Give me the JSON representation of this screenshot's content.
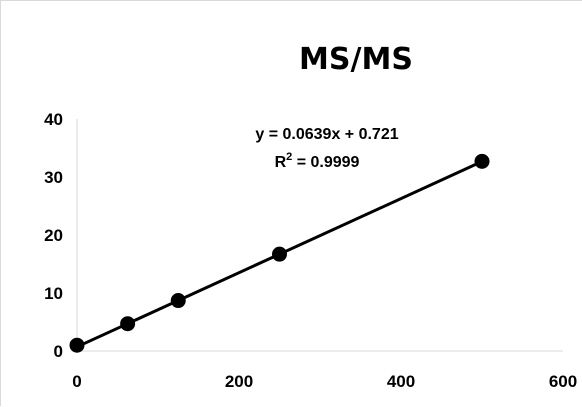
{
  "chart_data": {
    "type": "scatter",
    "title": "MS/MS",
    "xlabel": "",
    "ylabel": "",
    "x": [
      0,
      62.5,
      125,
      250,
      500
    ],
    "y": [
      1,
      4.7,
      8.7,
      16.7,
      32.7
    ],
    "xlim": [
      0,
      600
    ],
    "ylim": [
      0,
      40
    ],
    "xticks": [
      "0",
      "200",
      "400",
      "600"
    ],
    "yticks": [
      "0",
      "10",
      "20",
      "30",
      "40"
    ],
    "grid": false,
    "legend": "none",
    "trendline": {
      "equation": "y = 0.0639x + 0.721",
      "r2_prefix": "R",
      "r2_sup": "2",
      "r2_value": " = 0.9999"
    },
    "colors": {
      "series": "#000000",
      "axis": "#d9d9d9"
    }
  }
}
